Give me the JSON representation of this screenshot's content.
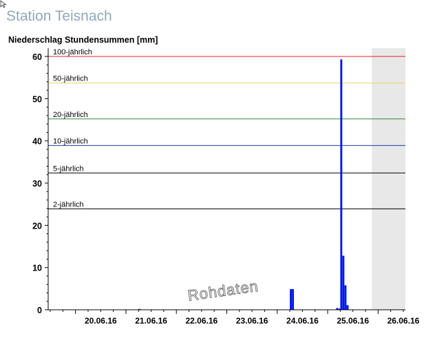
{
  "page": {
    "station_title": "Station Teisnach",
    "cursor_icon": "pointer-cursor-icon"
  },
  "chart_data": {
    "type": "bar",
    "title": "Niederschlag Stundensummen [mm]",
    "xlabel": "",
    "ylabel": "",
    "ylim": [
      0,
      60
    ],
    "yticks": [
      0,
      10,
      20,
      30,
      40,
      50,
      60
    ],
    "x_range_days": [
      "19.06.16",
      "26.06.16"
    ],
    "x_ticks": [
      "20.06.16",
      "21.06.16",
      "22.06.16",
      "23.06.16",
      "24.06.16",
      "25.06.16",
      "26.06.16"
    ],
    "watermark": "Rohdaten",
    "grid": false,
    "forecast_shading": {
      "from": "25.06.16 21:00",
      "to": "26.06.16 12:00",
      "color": "#e8e8e8"
    },
    "bar_color": "#0018f0",
    "thresholds": [
      {
        "label": "100-jährlich",
        "value": 60.0,
        "color": "#e02020"
      },
      {
        "label": "50-jährlich",
        "value": 53.7,
        "color": "#f0d060"
      },
      {
        "label": "20-jährlich",
        "value": 45.2,
        "color": "#2e8b2e"
      },
      {
        "label": "10-jährlich",
        "value": 38.9,
        "color": "#1a3aa8"
      },
      {
        "label": "5-jährlich",
        "value": 32.4,
        "color": "#000000"
      },
      {
        "label": "2-jährlich",
        "value": 23.9,
        "color": "#000000"
      }
    ],
    "series": [
      {
        "points": [
          {
            "x": "21.06.16 06:00",
            "y": 0.2
          },
          {
            "x": "24.06.16 06:00",
            "y": 4.9
          },
          {
            "x": "24.06.16 07:00",
            "y": 4.9
          },
          {
            "x": "25.06.16 04:00",
            "y": 0.4
          },
          {
            "x": "25.06.16 05:00",
            "y": 0.3
          },
          {
            "x": "25.06.16 06:00",
            "y": 59.3
          },
          {
            "x": "25.06.16 07:00",
            "y": 12.8
          },
          {
            "x": "25.06.16 08:00",
            "y": 5.8
          },
          {
            "x": "25.06.16 09:00",
            "y": 1.1
          }
        ]
      }
    ]
  }
}
